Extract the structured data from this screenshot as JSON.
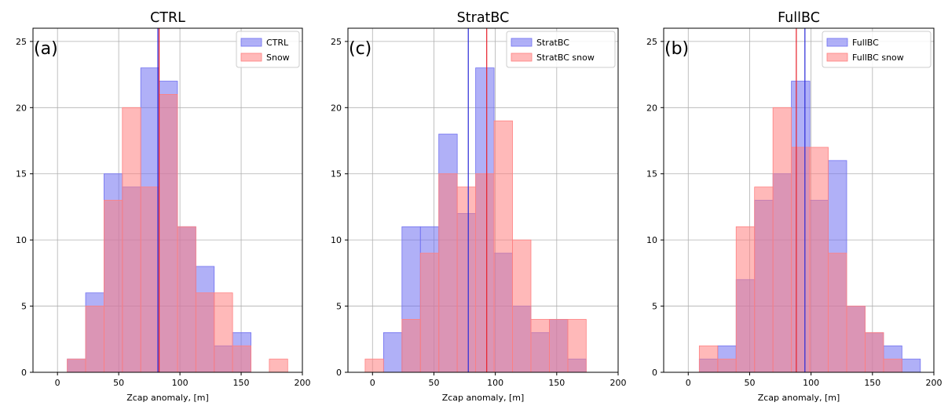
{
  "chart_data": [
    {
      "type": "histogram",
      "title": "CTRL",
      "panel_label": "(a)",
      "xlabel": "Zcap anomaly, [m]",
      "ylabel": "",
      "xlim": [
        -20,
        200
      ],
      "ylim": [
        0,
        26
      ],
      "xticks": [
        "0",
        "50",
        "100",
        "150",
        "200"
      ],
      "yticks": [
        "0",
        "5",
        "10",
        "15",
        "20",
        "25"
      ],
      "grid": true,
      "legend_position": "top-right",
      "mean_lines": [
        {
          "series": "CTRL",
          "x": 82
        },
        {
          "series": "Snow",
          "x": 83
        }
      ],
      "series": [
        {
          "name": "CTRL",
          "color": "#7070f0",
          "bin_edges": [
            8,
            23,
            38,
            53,
            68,
            83,
            98,
            113,
            128,
            143,
            158
          ],
          "counts": [
            1,
            6,
            15,
            14,
            23,
            22,
            11,
            8,
            2,
            3
          ]
        },
        {
          "name": "Snow",
          "color": "#ff8080",
          "bin_edges": [
            8,
            23,
            38,
            53,
            68,
            83,
            98,
            113,
            128,
            143,
            158,
            173,
            188
          ],
          "counts": [
            1,
            5,
            13,
            20,
            14,
            21,
            11,
            6,
            6,
            2,
            0,
            1
          ]
        }
      ]
    },
    {
      "type": "histogram",
      "title": "StratBC",
      "panel_label": "(c)",
      "xlabel": "Zcap anomaly, [m]",
      "ylabel": "",
      "xlim": [
        -20,
        200
      ],
      "ylim": [
        0,
        26
      ],
      "xticks": [
        "0",
        "50",
        "100",
        "150",
        "200"
      ],
      "yticks": [
        "0",
        "5",
        "10",
        "15",
        "20",
        "25"
      ],
      "grid": true,
      "legend_position": "top-right",
      "mean_lines": [
        {
          "series": "StratBC",
          "x": 78
        },
        {
          "series": "StratBC snow",
          "x": 93
        }
      ],
      "series": [
        {
          "name": "StratBC",
          "color": "#7070f0",
          "bin_edges": [
            9,
            24,
            39,
            54,
            69,
            84,
            99,
            114,
            129,
            144,
            159,
            174
          ],
          "counts": [
            3,
            11,
            11,
            18,
            12,
            23,
            9,
            5,
            3,
            4,
            1
          ]
        },
        {
          "name": "StratBC snow",
          "color": "#ff8080",
          "bin_edges": [
            -6,
            9,
            24,
            39,
            54,
            69,
            84,
            99,
            114,
            129,
            144,
            159,
            174
          ],
          "counts": [
            1,
            0,
            4,
            9,
            15,
            14,
            15,
            19,
            10,
            4,
            4,
            4
          ]
        }
      ]
    },
    {
      "type": "histogram",
      "title": "FullBC",
      "panel_label": "(b)",
      "xlabel": "Zcap anomaly, [m]",
      "ylabel": "",
      "xlim": [
        -20,
        200
      ],
      "ylim": [
        0,
        26
      ],
      "xticks": [
        "0",
        "50",
        "100",
        "150",
        "200"
      ],
      "yticks": [
        "0",
        "5",
        "10",
        "15",
        "20",
        "25"
      ],
      "grid": true,
      "legend_position": "top-right",
      "mean_lines": [
        {
          "series": "FullBC",
          "x": 95
        },
        {
          "series": "FullBC snow",
          "x": 88
        }
      ],
      "series": [
        {
          "name": "FullBC",
          "color": "#7070f0",
          "bin_edges": [
            9,
            24,
            39,
            54,
            69,
            84,
            99,
            114,
            129,
            144,
            159,
            174,
            189
          ],
          "counts": [
            1,
            2,
            7,
            13,
            15,
            22,
            13,
            16,
            5,
            3,
            2,
            1
          ]
        },
        {
          "name": "FullBC snow",
          "color": "#ff8080",
          "bin_edges": [
            9,
            24,
            39,
            54,
            69,
            84,
            99,
            114,
            129,
            144,
            159,
            174
          ],
          "counts": [
            2,
            1,
            11,
            14,
            20,
            17,
            17,
            9,
            5,
            3,
            1
          ]
        }
      ]
    }
  ]
}
